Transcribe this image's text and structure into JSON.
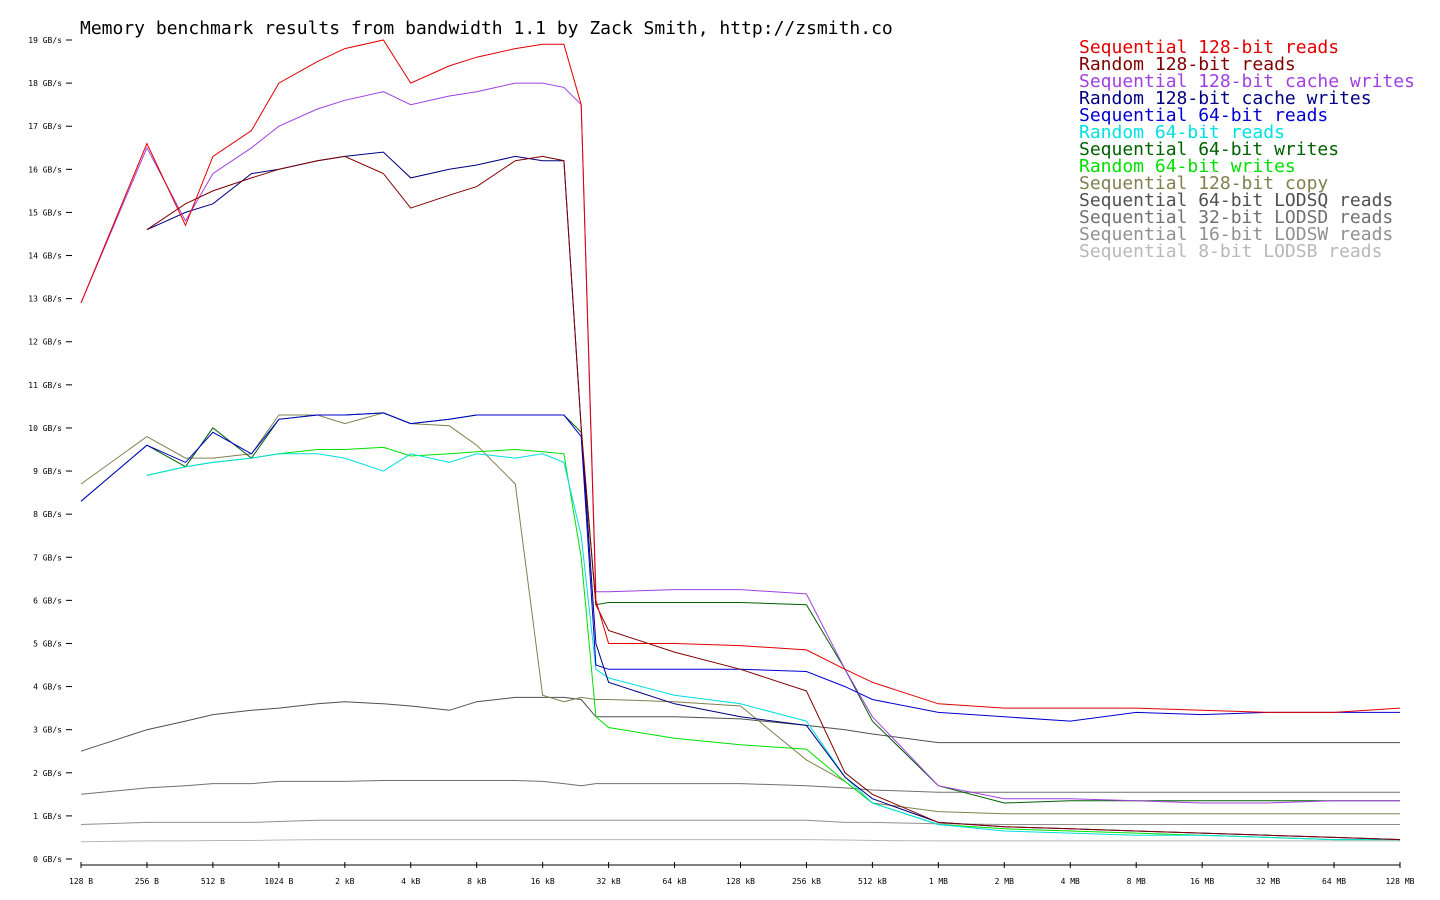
{
  "chart_data": {
    "type": "line",
    "title": "Memory benchmark results from bandwidth 1.1 by Zack Smith, http://zsmith.co",
    "log_x": true,
    "x": [
      128,
      256,
      384,
      512,
      768,
      1024,
      1536,
      2048,
      3072,
      4096,
      6144,
      8192,
      12288,
      16384,
      20480,
      24576,
      28672,
      32768,
      65536,
      131072,
      262144,
      393216,
      524288,
      1048576,
      2097152,
      4194304,
      8388608,
      16777216,
      33554432,
      67108864,
      134217728
    ],
    "xlim": [
      128,
      134217728
    ],
    "xticks": [
      {
        "value": 128,
        "label": "128 B"
      },
      {
        "value": 256,
        "label": "256 B"
      },
      {
        "value": 512,
        "label": "512 B"
      },
      {
        "value": 1024,
        "label": "1024 B"
      },
      {
        "value": 2048,
        "label": "2 kB"
      },
      {
        "value": 4096,
        "label": "4 kB"
      },
      {
        "value": 8192,
        "label": "8 kB"
      },
      {
        "value": 16384,
        "label": "16 kB"
      },
      {
        "value": 32768,
        "label": "32 kB"
      },
      {
        "value": 65536,
        "label": "64 kB"
      },
      {
        "value": 131072,
        "label": "128 kB"
      },
      {
        "value": 262144,
        "label": "256 kB"
      },
      {
        "value": 524288,
        "label": "512 kB"
      },
      {
        "value": 1048576,
        "label": "1 MB"
      },
      {
        "value": 2097152,
        "label": "2 MB"
      },
      {
        "value": 4194304,
        "label": "4 MB"
      },
      {
        "value": 8388608,
        "label": "8 MB"
      },
      {
        "value": 16777216,
        "label": "16 MB"
      },
      {
        "value": 33554432,
        "label": "32 MB"
      },
      {
        "value": 67108864,
        "label": "64 MB"
      },
      {
        "value": 134217728,
        "label": "128 MB"
      }
    ],
    "ylim": [
      0,
      19
    ],
    "yticks": [
      {
        "value": 0,
        "label": "0 GB/s"
      },
      {
        "value": 1,
        "label": "1 GB/s"
      },
      {
        "value": 2,
        "label": "2 GB/s"
      },
      {
        "value": 3,
        "label": "3 GB/s"
      },
      {
        "value": 4,
        "label": "4 GB/s"
      },
      {
        "value": 5,
        "label": "5 GB/s"
      },
      {
        "value": 6,
        "label": "6 GB/s"
      },
      {
        "value": 7,
        "label": "7 GB/s"
      },
      {
        "value": 8,
        "label": "8 GB/s"
      },
      {
        "value": 9,
        "label": "9 GB/s"
      },
      {
        "value": 10,
        "label": "10 GB/s"
      },
      {
        "value": 11,
        "label": "11 GB/s"
      },
      {
        "value": 12,
        "label": "12 GB/s"
      },
      {
        "value": 13,
        "label": "13 GB/s"
      },
      {
        "value": 14,
        "label": "14 GB/s"
      },
      {
        "value": 15,
        "label": "15 GB/s"
      },
      {
        "value": 16,
        "label": "16 GB/s"
      },
      {
        "value": 17,
        "label": "17 GB/s"
      },
      {
        "value": 18,
        "label": "18 GB/s"
      },
      {
        "value": 19,
        "label": "19 GB/s"
      }
    ],
    "legend": "top-right",
    "series": [
      {
        "name": "Sequential 128-bit reads",
        "color": "#e00000",
        "values": [
          12.9,
          16.6,
          14.7,
          16.3,
          16.9,
          18.0,
          18.5,
          18.8,
          19.0,
          18.0,
          18.4,
          18.6,
          18.8,
          18.9,
          18.9,
          17.5,
          6.0,
          5.0,
          5.0,
          4.95,
          4.85,
          4.4,
          4.1,
          3.6,
          3.5,
          3.5,
          3.5,
          3.45,
          3.4,
          3.4,
          3.5
        ]
      },
      {
        "name": "Random 128-bit reads",
        "color": "#800000",
        "values": [
          null,
          14.6,
          15.2,
          15.5,
          15.8,
          16.0,
          16.2,
          16.3,
          15.9,
          15.1,
          15.4,
          15.6,
          16.2,
          16.3,
          16.2,
          10.0,
          5.9,
          5.3,
          4.8,
          4.4,
          3.9,
          2.0,
          1.5,
          0.85,
          0.75,
          0.7,
          0.65,
          0.6,
          0.55,
          0.5,
          0.45
        ]
      },
      {
        "name": "Sequential 128-bit cache writes",
        "color": "#a040e0",
        "values": [
          12.9,
          16.5,
          14.8,
          15.9,
          16.5,
          17.0,
          17.4,
          17.6,
          17.8,
          17.5,
          17.7,
          17.8,
          18.0,
          18.0,
          17.9,
          17.5,
          6.2,
          6.2,
          6.25,
          6.25,
          6.15,
          4.4,
          3.3,
          1.7,
          1.4,
          1.4,
          1.35,
          1.3,
          1.3,
          1.35,
          1.35
        ]
      },
      {
        "name": "Random 128-bit cache writes",
        "color": "#000080",
        "values": [
          null,
          14.6,
          15.0,
          15.2,
          15.9,
          16.0,
          16.2,
          16.3,
          16.4,
          15.8,
          16.0,
          16.1,
          16.3,
          16.2,
          16.2,
          10.0,
          5.0,
          4.1,
          3.6,
          3.3,
          3.1,
          1.9,
          1.4,
          0.85,
          0.75,
          0.7,
          0.65,
          0.6,
          0.55,
          0.5,
          0.45
        ]
      },
      {
        "name": "Sequential 64-bit reads",
        "color": "#0000d0",
        "values": [
          8.3,
          9.6,
          9.2,
          9.9,
          9.4,
          10.2,
          10.3,
          10.3,
          10.35,
          10.1,
          10.2,
          10.3,
          10.3,
          10.3,
          10.3,
          9.8,
          4.5,
          4.4,
          4.4,
          4.4,
          4.35,
          4.0,
          3.7,
          3.4,
          3.3,
          3.2,
          3.4,
          3.35,
          3.4,
          3.4,
          3.4
        ]
      },
      {
        "name": "Random 64-bit reads",
        "color": "#00e0e0",
        "values": [
          null,
          8.9,
          9.1,
          9.2,
          9.3,
          9.4,
          9.4,
          9.3,
          9.0,
          9.4,
          9.2,
          9.4,
          9.3,
          9.4,
          9.2,
          7.5,
          4.4,
          4.2,
          3.8,
          3.6,
          3.2,
          1.9,
          1.3,
          0.8,
          0.65,
          0.6,
          0.55,
          0.55,
          0.5,
          0.45,
          0.45
        ]
      },
      {
        "name": "Sequential 64-bit writes",
        "color": "#006000",
        "values": [
          8.3,
          9.6,
          9.1,
          10.0,
          9.3,
          10.2,
          10.3,
          10.3,
          10.35,
          10.1,
          10.2,
          10.3,
          10.3,
          10.3,
          10.3,
          9.9,
          5.9,
          5.95,
          5.95,
          5.95,
          5.9,
          4.4,
          3.2,
          1.7,
          1.3,
          1.35,
          1.35,
          1.35,
          1.35,
          1.35,
          1.35
        ]
      },
      {
        "name": "Random 64-bit writes",
        "color": "#00e000",
        "values": [
          null,
          8.9,
          9.1,
          9.2,
          9.3,
          9.4,
          9.5,
          9.5,
          9.55,
          9.35,
          9.4,
          9.45,
          9.5,
          9.45,
          9.4,
          7.0,
          3.3,
          3.05,
          2.8,
          2.65,
          2.55,
          1.8,
          1.3,
          0.8,
          0.7,
          0.65,
          0.6,
          0.55,
          0.5,
          0.45,
          0.45
        ]
      },
      {
        "name": "Sequential 128-bit copy",
        "color": "#808050",
        "values": [
          8.7,
          9.8,
          9.3,
          9.3,
          9.4,
          10.3,
          10.3,
          10.1,
          10.35,
          10.1,
          10.05,
          9.6,
          8.7,
          3.8,
          3.65,
          3.75,
          3.7,
          3.7,
          3.65,
          3.55,
          2.3,
          1.8,
          1.3,
          1.1,
          1.05,
          1.05,
          1.05,
          1.05,
          1.05,
          1.05,
          1.05
        ]
      },
      {
        "name": "Sequential 64-bit LODSQ reads",
        "color": "#505050",
        "values": [
          2.5,
          3.0,
          3.2,
          3.35,
          3.45,
          3.5,
          3.6,
          3.65,
          3.6,
          3.55,
          3.45,
          3.65,
          3.75,
          3.75,
          3.75,
          3.7,
          3.3,
          3.3,
          3.3,
          3.25,
          3.1,
          3.0,
          2.9,
          2.7,
          2.7,
          2.7,
          2.7,
          2.7,
          2.7,
          2.7,
          2.7
        ]
      },
      {
        "name": "Sequential 32-bit LODSD reads",
        "color": "#707070",
        "values": [
          1.5,
          1.65,
          1.7,
          1.75,
          1.75,
          1.8,
          1.8,
          1.8,
          1.82,
          1.82,
          1.82,
          1.82,
          1.82,
          1.8,
          1.75,
          1.7,
          1.75,
          1.75,
          1.75,
          1.75,
          1.7,
          1.65,
          1.6,
          1.55,
          1.55,
          1.55,
          1.55,
          1.55,
          1.55,
          1.55,
          1.55
        ]
      },
      {
        "name": "Sequential 16-bit LODSW reads",
        "color": "#909090",
        "values": [
          0.8,
          0.85,
          0.85,
          0.85,
          0.85,
          0.87,
          0.9,
          0.9,
          0.9,
          0.9,
          0.9,
          0.9,
          0.9,
          0.9,
          0.9,
          0.9,
          0.9,
          0.9,
          0.9,
          0.9,
          0.9,
          0.85,
          0.85,
          0.82,
          0.8,
          0.8,
          0.8,
          0.8,
          0.8,
          0.8,
          0.8
        ]
      },
      {
        "name": "Sequential 8-bit LODSB reads",
        "color": "#b8b8b8",
        "values": [
          0.4,
          0.42,
          0.42,
          0.43,
          0.43,
          0.44,
          0.45,
          0.45,
          0.45,
          0.45,
          0.45,
          0.45,
          0.45,
          0.45,
          0.45,
          0.45,
          0.45,
          0.45,
          0.45,
          0.45,
          0.45,
          0.44,
          0.43,
          0.42,
          0.42,
          0.42,
          0.42,
          0.42,
          0.42,
          0.42,
          0.42
        ]
      }
    ]
  }
}
